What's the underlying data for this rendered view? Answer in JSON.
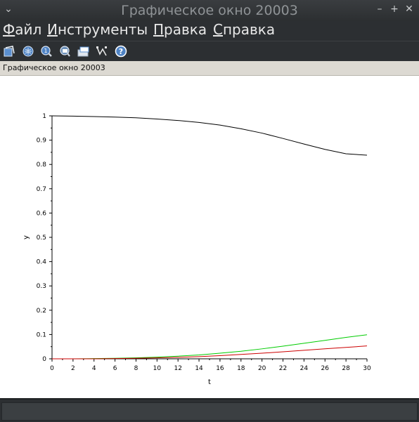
{
  "window": {
    "title": "Графическое окно 20003",
    "collapse_glyph": "⌄",
    "minimize_glyph": "–",
    "maximize_glyph": "+",
    "close_glyph": "✕"
  },
  "menu": {
    "items": [
      {
        "label": "Файл"
      },
      {
        "label": "Инструменты"
      },
      {
        "label": "Правка"
      },
      {
        "label": "Справка"
      }
    ]
  },
  "toolbar": {
    "icons": [
      "rotate-icon",
      "zoom-area-icon",
      "zoom-reset-icon",
      "datatip-icon",
      "print-icon",
      "data-mode-icon",
      "help-icon"
    ],
    "help_glyph": "?"
  },
  "status": {
    "text": "Графическое окно 20003"
  },
  "chart_data": {
    "type": "line",
    "xlabel": "t",
    "ylabel": "y",
    "xlim": [
      0,
      30
    ],
    "ylim": [
      0,
      1
    ],
    "x_ticks": [
      0,
      2,
      4,
      6,
      8,
      10,
      12,
      14,
      16,
      18,
      20,
      22,
      24,
      26,
      28,
      30
    ],
    "y_ticks": [
      0,
      0.1,
      0.2,
      0.3,
      0.4,
      0.5,
      0.6,
      0.7,
      0.8,
      0.9,
      1
    ],
    "grid": false,
    "x": [
      0,
      2,
      4,
      6,
      8,
      10,
      12,
      14,
      16,
      18,
      20,
      22,
      24,
      26,
      28,
      30
    ],
    "series": [
      {
        "color": "#000000",
        "values": [
          1.0,
          0.999,
          0.997,
          0.995,
          0.992,
          0.987,
          0.981,
          0.973,
          0.962,
          0.947,
          0.929,
          0.907,
          0.884,
          0.862,
          0.844,
          0.838
        ]
      },
      {
        "color": "#00cc00",
        "values": [
          0.0,
          0.0,
          0.001,
          0.002,
          0.004,
          0.007,
          0.011,
          0.016,
          0.023,
          0.031,
          0.041,
          0.052,
          0.064,
          0.076,
          0.088,
          0.099
        ]
      },
      {
        "color": "#cc0000",
        "values": [
          0.0,
          0.0,
          0.0,
          0.001,
          0.002,
          0.004,
          0.006,
          0.009,
          0.013,
          0.018,
          0.023,
          0.029,
          0.035,
          0.041,
          0.047,
          0.053
        ]
      }
    ]
  }
}
